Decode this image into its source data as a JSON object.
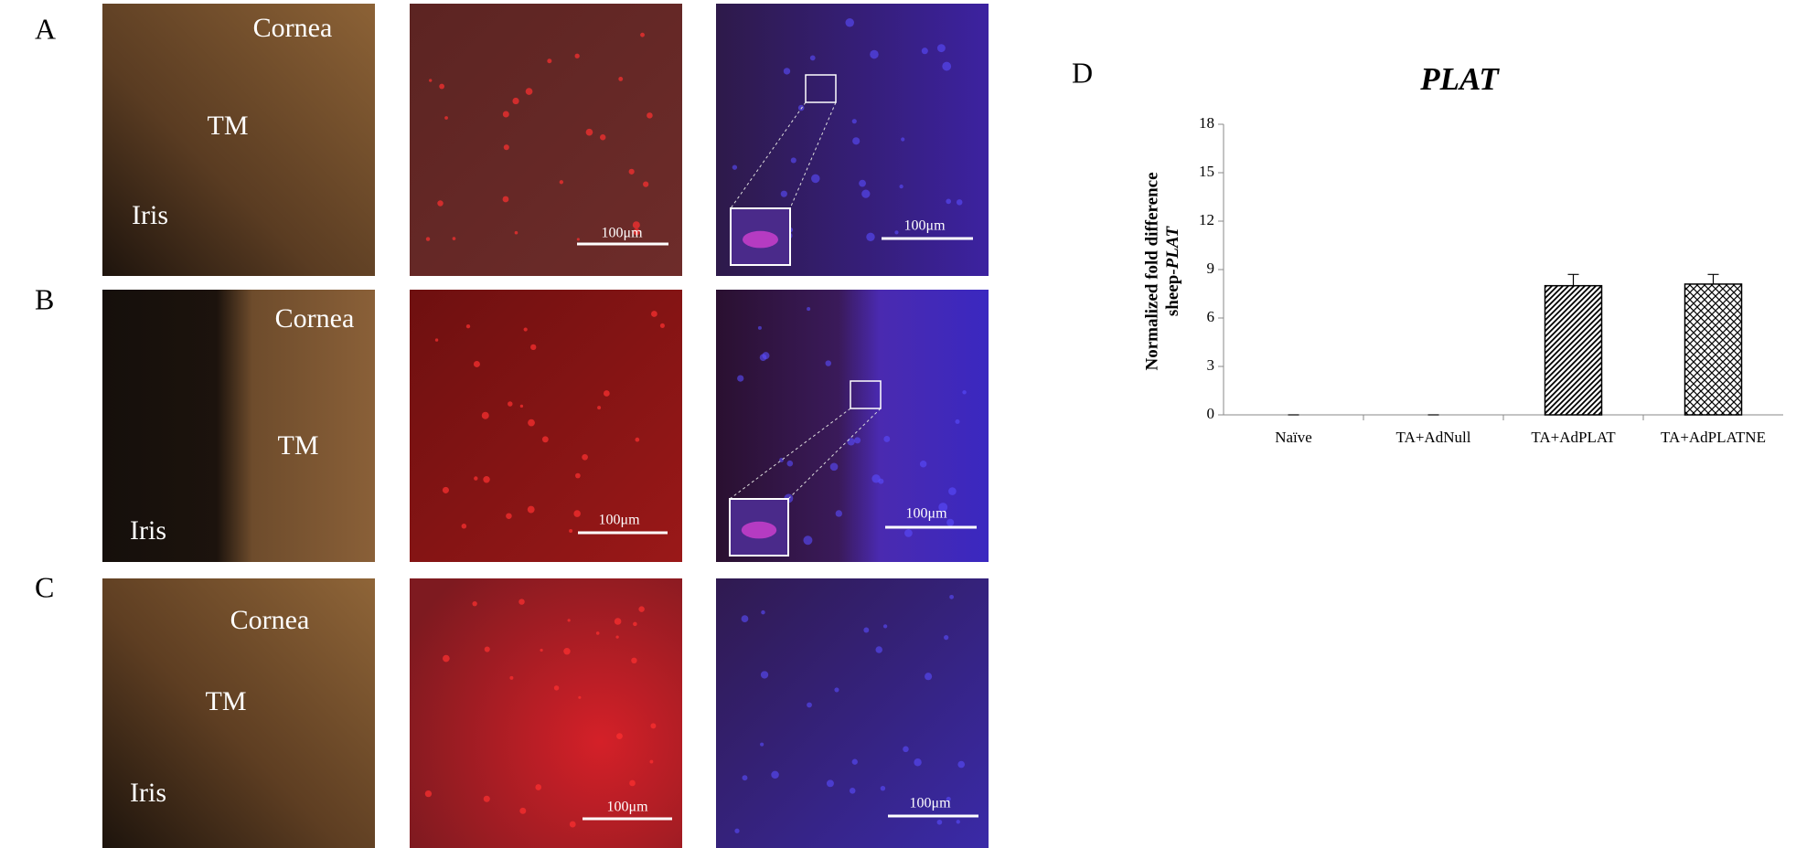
{
  "panels": {
    "rows": [
      {
        "letter": "A",
        "cornea": "Cornea",
        "tm": "TM",
        "iris": "Iris",
        "scale_red": "100μm",
        "scale_merge": "100μm"
      },
      {
        "letter": "B",
        "cornea": "Cornea",
        "tm": "TM",
        "iris": "Iris",
        "scale_red": "100μm",
        "scale_merge": "100μm"
      },
      {
        "letter": "C",
        "cornea": "Cornea",
        "tm": "TM",
        "iris": "Iris",
        "scale_red": "100μm",
        "scale_merge": "100μm"
      }
    ],
    "chart_letter": "D"
  },
  "chart_data": {
    "type": "bar",
    "title": "PLAT",
    "ylabel": "Normalized fold difference",
    "ylabel2": "sheep-",
    "ylabel2_italic": "PLAT",
    "categories": [
      "Naïve",
      "TA+AdNull",
      "TA+AdPLAT",
      "TA+AdPLATNE"
    ],
    "values": [
      0,
      0,
      8.0,
      8.1
    ],
    "errors": [
      0,
      0,
      0.7,
      0.6
    ],
    "patterns": [
      "none",
      "none",
      "diagonal",
      "cross"
    ],
    "color": "#000000",
    "ylim": [
      0,
      18
    ],
    "yticks": [
      0,
      3,
      6,
      9,
      12,
      15,
      18
    ]
  }
}
